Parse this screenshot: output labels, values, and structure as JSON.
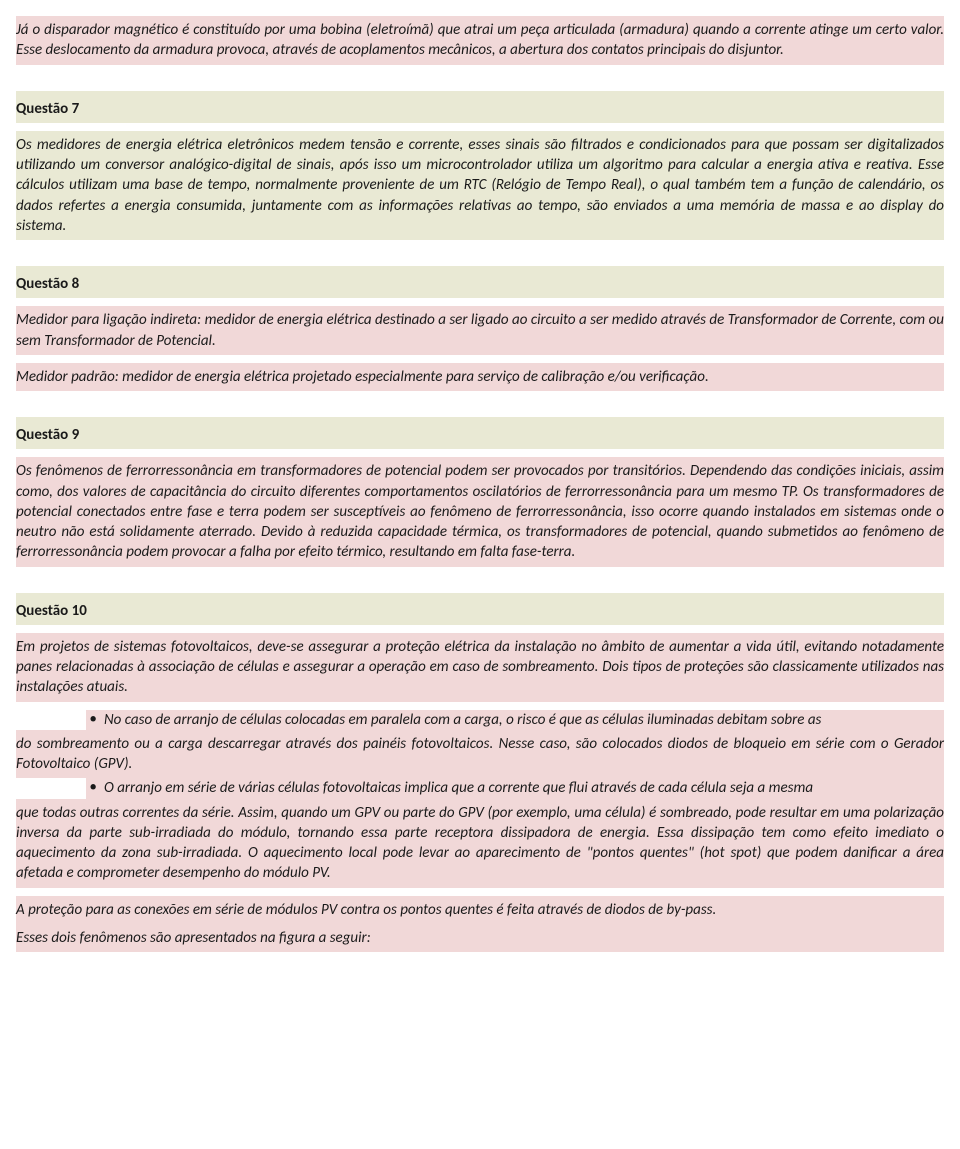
{
  "top": {
    "p1": "Já o disparador magnético é constituído por uma bobina (eletroímã) que atrai um peça articulada (armadura) quando a corrente atinge um certo valor. Esse deslocamento da armadura provoca, através de acoplamentos mecânicos, a abertura dos contatos principais do disjuntor."
  },
  "q7": {
    "title": "Questão 7",
    "body": "Os medidores de energia elétrica eletrônicos medem tensão e corrente, esses sinais são filtrados e condicionados para que possam ser digitalizados utilizando um conversor analógico-digital de sinais, após isso um microcontrolador utiliza um algoritmo para calcular a energia ativa e reativa. Esse cálculos utilizam uma base de tempo, normalmente proveniente de um RTC (Relógio de Tempo Real), o qual também tem a função de calendário, os dados refertes a energia consumida, juntamente com as informações relativas ao tempo, são enviados a uma memória de massa e ao display do sistema."
  },
  "q8": {
    "title": "Questão 8",
    "p1": "Medidor para ligação indireta: medidor de energia elétrica destinado a ser ligado ao circuito a ser medido através de Transformador de Corrente, com ou sem Transformador de Potencial.",
    "p2": "Medidor padrão: medidor de energia elétrica projetado especialmente para serviço de calibração e/ou verificação."
  },
  "q9": {
    "title": "Questão 9",
    "body": "Os fenômenos de ferrorressonância em transformadores de potencial podem ser provocados por transitórios. Dependendo das condições iniciais, assim como, dos valores de capacitância do circuito diferentes comportamentos oscilatórios de ferrorressonância para um mesmo TP. Os transformadores de potencial conectados entre fase e terra podem ser susceptíveis ao fenômeno de ferrorressonância, isso ocorre quando instalados em sistemas onde o neutro não está solidamente aterrado. Devido à reduzida capacidade térmica, os transformadores de potencial, quando submetidos ao fenômeno de ferrorressonância podem provocar a falha por efeito térmico, resultando em falta fase-terra."
  },
  "q10": {
    "title": "Questão 10",
    "p1": "Em projetos de sistemas fotovoltaicos, deve-se assegurar a proteção elétrica da instalação no âmbito de aumentar a vida útil, evitando notadamente panes relacionadas à associação de células e assegurar a operação em caso de sombreamento. Dois tipos de proteções são classicamente utilizados nas instalações atuais.",
    "b1_first": "No caso de arranjo de células colocadas em paralela com a carga, o risco é que as células iluminadas debitam sobre as",
    "b1_cont": "do sombreamento ou a carga descarregar através dos painéis fotovoltaicos. Nesse caso, são colocados diodos de bloqueio em série com o Gerador Fotovoltaico (GPV).",
    "b2_first": "O arranjo em série de várias células fotovoltaicas implica que a corrente que flui através de cada célula seja a mesma",
    "b2_cont": "que todas outras correntes da série. Assim, quando um GPV ou parte do GPV (por exemplo, uma célula) é sombreado, pode resultar em uma polarização inversa da parte sub-irradiada do módulo, tornando essa parte receptora dissipadora de energia. Essa dissipação tem como efeito imediato o aquecimento da zona sub-irradiada. O aquecimento local pode levar ao aparecimento de \"pontos quentes\" (hot spot) que podem danificar a área afetada e comprometer desempenho do módulo PV.",
    "p2": "A proteção para as conexões em série de módulos PV contra os pontos quentes é feita através de diodos de by-pass.",
    "p3": "Esses dois fenômenos são apresentados na figura a seguir:"
  },
  "bullet": "•"
}
